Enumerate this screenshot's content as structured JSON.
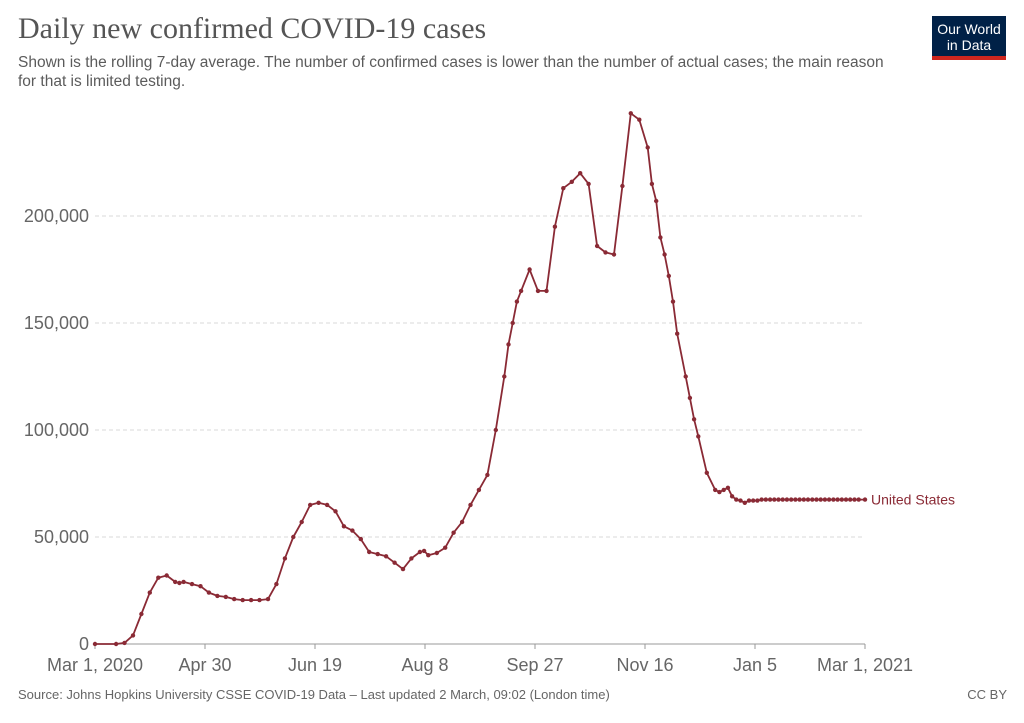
{
  "header": {
    "title": "Daily new confirmed COVID-19 cases",
    "subtitle": "Shown is the rolling 7-day average. The number of confirmed cases is lower than the number of actual cases; the main reason for that is limited testing."
  },
  "logo": {
    "line1": "Our World",
    "line2": "in Data",
    "bg_color": "#002147",
    "accent_color": "#ce261e"
  },
  "footer": {
    "source": "Source: Johns Hopkins University CSSE COVID-19 Data – Last updated 2 March, 09:02 (London time)",
    "license": "CC BY"
  },
  "chart_data": {
    "type": "line",
    "title": "Daily new confirmed COVID-19 cases",
    "xlabel": "",
    "ylabel": "",
    "x_ticks": [
      "Mar 1, 2020",
      "Apr 30",
      "Jun 19",
      "Aug 8",
      "Sep 27",
      "Nov 16",
      "Jan 5",
      "Mar 1, 2021"
    ],
    "x_range_days": [
      0,
      365
    ],
    "y_ticks": [
      0,
      50000,
      100000,
      150000,
      200000
    ],
    "y_tick_labels": [
      "0",
      "50,000",
      "100,000",
      "150,000",
      "200,000"
    ],
    "ylim": [
      0,
      250000
    ],
    "grid": "horizontal dashed",
    "line_color": "#8a2a35",
    "series": [
      {
        "name": "United States",
        "x": [
          0,
          10,
          14,
          18,
          22,
          26,
          30,
          34,
          38,
          40,
          42,
          46,
          50,
          54,
          58,
          62,
          66,
          70,
          74,
          78,
          82,
          86,
          90,
          94,
          98,
          102,
          106,
          110,
          114,
          118,
          122,
          126,
          130,
          134,
          138,
          142,
          146,
          150,
          154,
          156,
          158,
          162,
          166,
          170,
          174,
          178,
          182,
          186,
          190,
          194,
          196,
          198,
          200,
          202,
          206,
          210,
          214,
          218,
          222,
          226,
          230,
          234,
          238,
          242,
          246,
          250,
          254,
          258,
          262,
          264,
          266,
          268,
          270,
          272,
          274,
          276,
          280,
          282,
          284,
          286,
          290,
          294,
          296,
          298,
          300,
          302,
          304,
          306,
          308,
          310,
          312,
          314,
          316,
          318,
          320,
          322,
          324,
          326,
          328,
          330,
          332,
          334,
          336,
          338,
          340,
          342,
          344,
          346,
          348,
          350,
          352,
          354,
          356,
          358,
          360,
          362,
          365
        ],
        "y": [
          0,
          0,
          500,
          4000,
          14000,
          24000,
          31000,
          32000,
          29000,
          28500,
          29000,
          28000,
          27000,
          24000,
          22500,
          22000,
          21000,
          20500,
          20500,
          20500,
          21000,
          28000,
          40000,
          50000,
          57000,
          65000,
          66000,
          65000,
          62000,
          55000,
          53000,
          49000,
          43000,
          42000,
          41000,
          38000,
          35000,
          40000,
          43000,
          43500,
          41500,
          42500,
          45000,
          52000,
          57000,
          65000,
          72000,
          79000,
          100000,
          125000,
          140000,
          150000,
          160000,
          165000,
          175000,
          165000,
          165000,
          195000,
          213000,
          216000,
          220000,
          215000,
          186000,
          183000,
          182000,
          214000,
          248000,
          245000,
          232000,
          215000,
          207000,
          190000,
          182000,
          172000,
          160000,
          145000,
          125000,
          115000,
          105000,
          97000,
          80000,
          72000,
          71000,
          72000,
          73000,
          69000,
          67500,
          67000,
          66000,
          67000,
          67000,
          67000,
          67500,
          67500,
          67500,
          67500,
          67500,
          67500,
          67500,
          67500,
          67500,
          67500,
          67500,
          67500,
          67500,
          67500,
          67500,
          67500,
          67500,
          67500,
          67500,
          67500,
          67500,
          67500,
          67500,
          67500,
          67500
        ]
      }
    ],
    "series_label": "United States"
  }
}
